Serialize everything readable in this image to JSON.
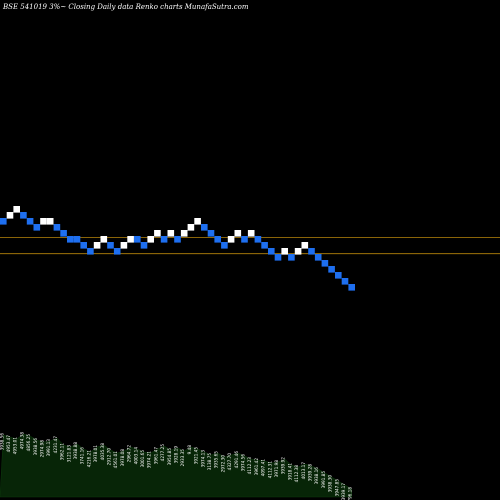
{
  "header": {
    "title": "BSE 541019 3%~  Closing Daily data  Renko  charts MunafaSutra.com"
  },
  "colors": {
    "background": "#000000",
    "brick_up": "#ffffff",
    "brick_down": "#1e6ff0",
    "reference_line": "#b8860b",
    "volume_fill": "#072507"
  },
  "chart_data": {
    "type": "renko",
    "bricks": [
      {
        "level": 27,
        "dir": "down"
      },
      {
        "level": 28,
        "dir": "up"
      },
      {
        "level": 29,
        "dir": "up"
      },
      {
        "level": 28,
        "dir": "down"
      },
      {
        "level": 27,
        "dir": "down"
      },
      {
        "level": 26,
        "dir": "down"
      },
      {
        "level": 27,
        "dir": "up"
      },
      {
        "level": 27,
        "dir": "up"
      },
      {
        "level": 26,
        "dir": "down"
      },
      {
        "level": 25,
        "dir": "down"
      },
      {
        "level": 24,
        "dir": "down"
      },
      {
        "level": 24,
        "dir": "down"
      },
      {
        "level": 23,
        "dir": "down"
      },
      {
        "level": 22,
        "dir": "down"
      },
      {
        "level": 23,
        "dir": "up"
      },
      {
        "level": 24,
        "dir": "up"
      },
      {
        "level": 23,
        "dir": "down"
      },
      {
        "level": 22,
        "dir": "down"
      },
      {
        "level": 23,
        "dir": "up"
      },
      {
        "level": 24,
        "dir": "up"
      },
      {
        "level": 24,
        "dir": "down"
      },
      {
        "level": 23,
        "dir": "down"
      },
      {
        "level": 24,
        "dir": "up"
      },
      {
        "level": 25,
        "dir": "up"
      },
      {
        "level": 24,
        "dir": "down"
      },
      {
        "level": 25,
        "dir": "up"
      },
      {
        "level": 24,
        "dir": "down"
      },
      {
        "level": 25,
        "dir": "up"
      },
      {
        "level": 26,
        "dir": "up"
      },
      {
        "level": 27,
        "dir": "up"
      },
      {
        "level": 26,
        "dir": "down"
      },
      {
        "level": 25,
        "dir": "down"
      },
      {
        "level": 24,
        "dir": "down"
      },
      {
        "level": 23,
        "dir": "down"
      },
      {
        "level": 24,
        "dir": "up"
      },
      {
        "level": 25,
        "dir": "up"
      },
      {
        "level": 24,
        "dir": "down"
      },
      {
        "level": 25,
        "dir": "up"
      },
      {
        "level": 24,
        "dir": "down"
      },
      {
        "level": 23,
        "dir": "down"
      },
      {
        "level": 22,
        "dir": "down"
      },
      {
        "level": 21,
        "dir": "down"
      },
      {
        "level": 22,
        "dir": "up"
      },
      {
        "level": 21,
        "dir": "down"
      },
      {
        "level": 22,
        "dir": "up"
      },
      {
        "level": 23,
        "dir": "up"
      },
      {
        "level": 22,
        "dir": "down"
      },
      {
        "level": 21,
        "dir": "down"
      },
      {
        "level": 20,
        "dir": "down"
      },
      {
        "level": 19,
        "dir": "down"
      },
      {
        "level": 18,
        "dir": "down"
      },
      {
        "level": 17,
        "dir": "down"
      },
      {
        "level": 16,
        "dir": "down"
      }
    ],
    "reference_lines": [
      24.3,
      21.6
    ],
    "volume": [
      62,
      60,
      58,
      63,
      61,
      57,
      55,
      56,
      59,
      52,
      50,
      53,
      48,
      45,
      50,
      52,
      47,
      44,
      46,
      50,
      48,
      45,
      44,
      48,
      51,
      47,
      49,
      46,
      50,
      48,
      45,
      42,
      44,
      40,
      42,
      44,
      41,
      38,
      37,
      36,
      34,
      35,
      38,
      32,
      30,
      33,
      31,
      28,
      24,
      20,
      16,
      12,
      8
    ],
    "volume_labels": [
      "3938.56",
      "4953.47",
      "4953.01",
      "4974.38",
      "4856.25",
      "3938.56",
      "2974.98",
      "3991.13",
      "4231.47",
      "3962.11",
      "3121.83",
      "3938.88",
      "3741.16",
      "4216.21",
      "3978.01",
      "4035.38",
      "2912.70",
      "4561.01",
      "3978.08",
      "2964.72",
      "4003.14",
      "3001.65",
      "3974.21",
      "3961.47",
      "4277.25",
      "3954.85",
      "3928.19",
      "2933.35",
      "9.48",
      "3921.45",
      "3974.13",
      "3138.75",
      "3935.65",
      "2972.30",
      "4327.70",
      "4291.46",
      "3974.56",
      "4112.23",
      "3961.42",
      "4097.41",
      "4112.31",
      "3971.98",
      "3939.92",
      "3918.41",
      "4112.38",
      "4013.17",
      "3939.28",
      "3938.16",
      "3991.85",
      "3938.30",
      "3947.85",
      "3939.17",
      "796.18"
    ]
  }
}
